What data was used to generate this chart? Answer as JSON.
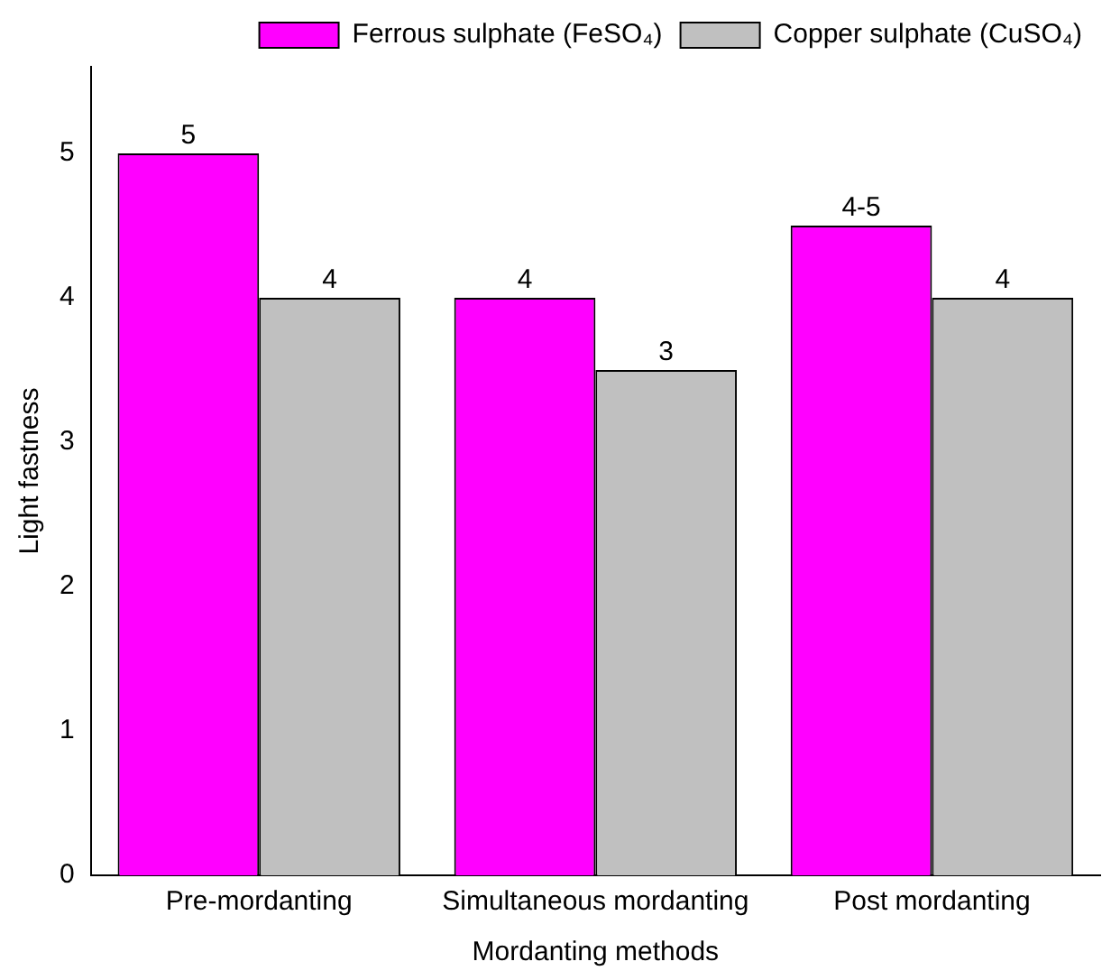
{
  "chart_data": {
    "type": "bar",
    "xlabel": "Mordanting methods",
    "ylabel": "Light fastness",
    "categories": [
      "Pre-mordanting",
      "Simultaneous mordanting",
      "Post mordanting"
    ],
    "series": [
      {
        "name": "Ferrous sulphate (FeSO₄)",
        "color": "#ff00ff",
        "values": [
          5,
          4,
          4.5
        ],
        "value_labels": [
          "5",
          "4",
          "4-5"
        ]
      },
      {
        "name": "Copper sulphate (CuSO₄)",
        "color": "#c0c0c0",
        "values": [
          4,
          3.5,
          4
        ],
        "value_labels": [
          "4",
          "3",
          "4"
        ]
      }
    ],
    "ylim": [
      0,
      5.6
    ],
    "yticks": [
      0,
      1,
      2,
      3,
      4,
      5
    ],
    "grid": false,
    "legend": "top right"
  }
}
